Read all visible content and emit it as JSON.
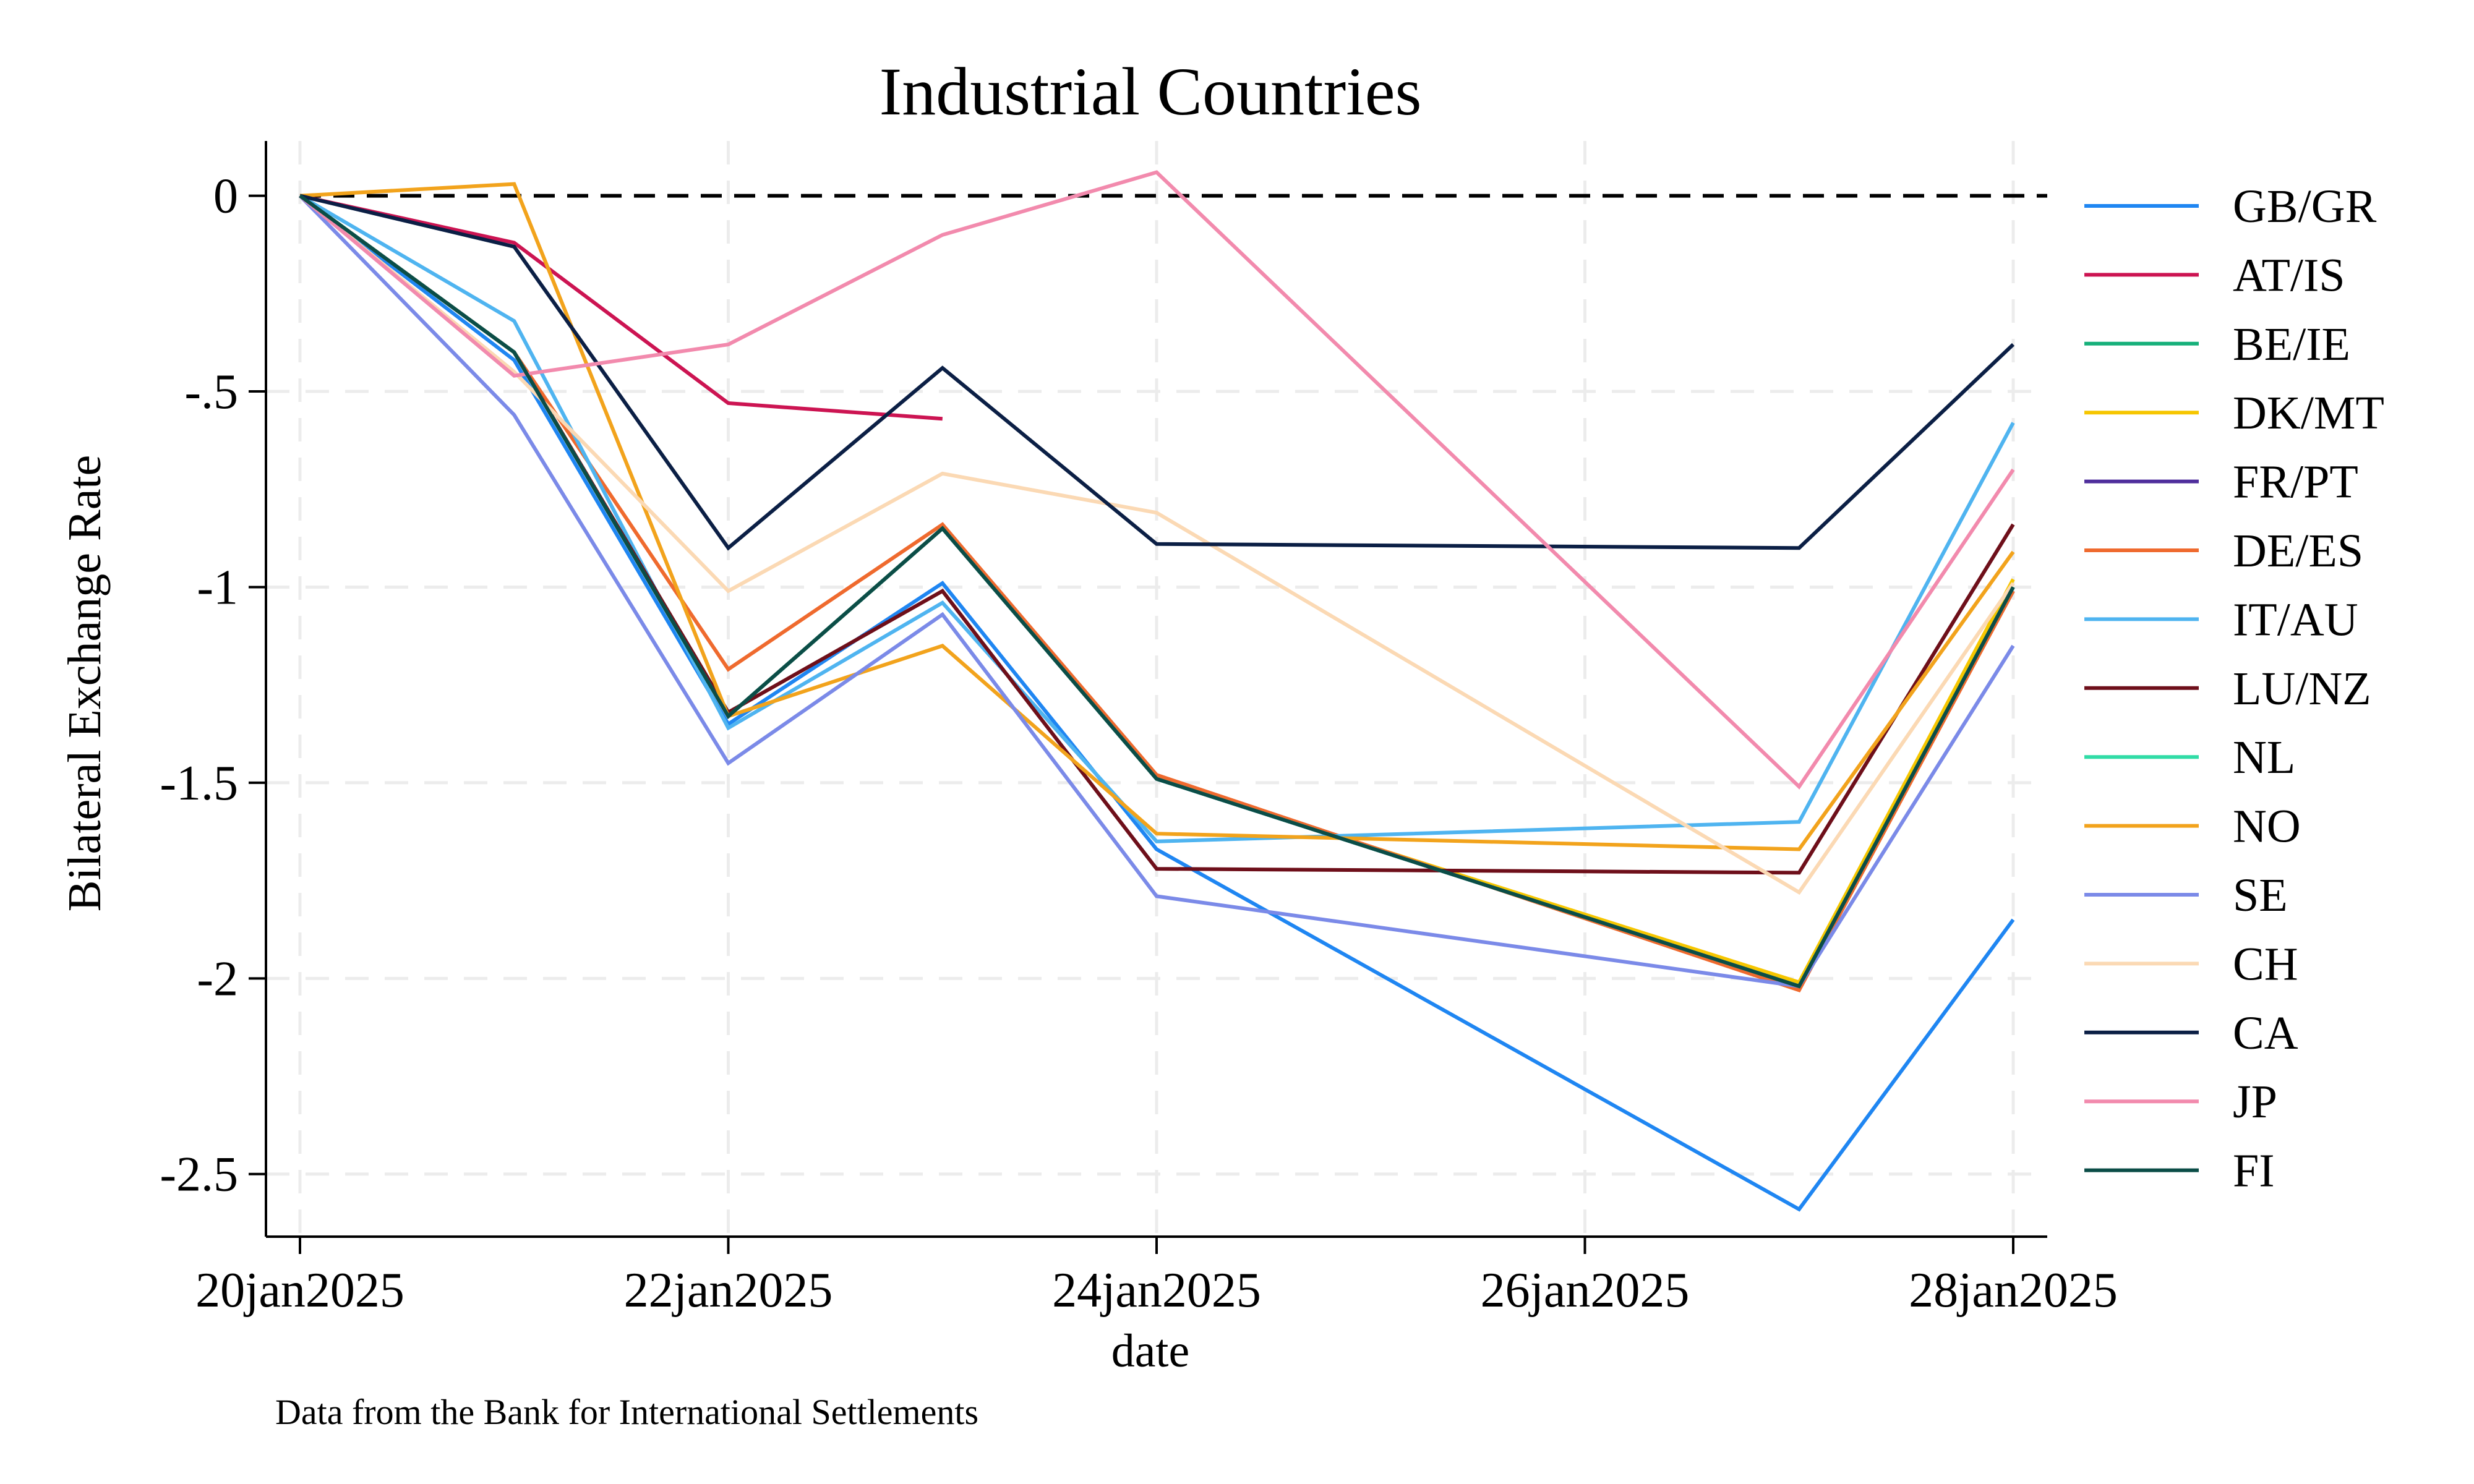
{
  "chart_data": {
    "type": "line",
    "title": "Industrial Countries",
    "xlabel": "date",
    "ylabel": "Bilateral Exchange Rate",
    "note": "Data from the Bank for International Settlements",
    "x": [
      "20jan2025",
      "21jan2025",
      "22jan2025",
      "23jan2025",
      "24jan2025",
      "27jan2025",
      "28jan2025"
    ],
    "x_ticks": [
      "20jan2025",
      "22jan2025",
      "24jan2025",
      "26jan2025",
      "28jan2025"
    ],
    "y_ticks": [
      0,
      -0.5,
      -1,
      -1.5,
      -2,
      -2.5
    ],
    "y_tick_labels": [
      "0",
      "-.5",
      "-1",
      "-1.5",
      "-2",
      "-2.5"
    ],
    "ylim": [
      -2.66,
      0.14
    ],
    "reference_line": 0,
    "grid": true,
    "legend_position": "right",
    "series": [
      {
        "name": "GB/GR",
        "color": "#1f86f2",
        "values": [
          0,
          -0.42,
          -1.35,
          -0.99,
          -1.67,
          -2.59,
          -1.85
        ]
      },
      {
        "name": "AT/IS",
        "color": "#cc1452",
        "values": [
          0,
          -0.12,
          -0.53,
          -0.57,
          null,
          null,
          null
        ]
      },
      {
        "name": "BE/IE",
        "color": "#16b07a",
        "values": [
          0,
          -0.4,
          -1.33,
          -0.85,
          -1.49,
          -2.02,
          -1.0
        ]
      },
      {
        "name": "DK/MT",
        "color": "#f6c600",
        "values": [
          0,
          -0.4,
          -1.33,
          -0.85,
          -1.49,
          -2.01,
          -0.98
        ]
      },
      {
        "name": "FR/PT",
        "color": "#4f2e9c",
        "values": [
          0,
          -0.4,
          -1.33,
          -0.85,
          -1.49,
          -2.02,
          -1.01
        ]
      },
      {
        "name": "DE/ES",
        "color": "#ef6a2e",
        "values": [
          0,
          -0.4,
          -1.21,
          -0.84,
          -1.48,
          -2.03,
          -1.01
        ]
      },
      {
        "name": "IT/AU",
        "color": "#4fb4f0",
        "values": [
          0,
          -0.32,
          -1.36,
          -1.04,
          -1.65,
          -1.6,
          -0.58
        ]
      },
      {
        "name": "LU/NZ",
        "color": "#6e0f1a",
        "values": [
          0,
          -0.4,
          -1.32,
          -1.01,
          -1.72,
          -1.73,
          -0.84
        ]
      },
      {
        "name": "NL",
        "color": "#30dca6",
        "values": [
          0,
          -0.4,
          -1.33,
          -0.85,
          -1.49,
          -2.02,
          -1.0
        ]
      },
      {
        "name": "NO",
        "color": "#f2a31c",
        "values": [
          0,
          0.03,
          -1.33,
          -1.15,
          -1.63,
          -1.67,
          -0.91
        ]
      },
      {
        "name": "SE",
        "color": "#7b8ae8",
        "values": [
          0,
          -0.56,
          -1.45,
          -1.07,
          -1.79,
          -2.02,
          -1.15
        ]
      },
      {
        "name": "CH",
        "color": "#fbd9b4",
        "values": [
          0,
          -0.45,
          -1.01,
          -0.71,
          -0.81,
          -1.78,
          -0.99
        ]
      },
      {
        "name": "CA",
        "color": "#0b1f45",
        "values": [
          0,
          -0.13,
          -0.9,
          -0.44,
          -0.89,
          -0.9,
          -0.38
        ]
      },
      {
        "name": "JP",
        "color": "#f28aad",
        "values": [
          0,
          -0.46,
          -0.38,
          -0.1,
          0.06,
          -1.51,
          -0.7
        ]
      },
      {
        "name": "FI",
        "color": "#0b4d47",
        "values": [
          0,
          -0.4,
          -1.33,
          -0.85,
          -1.49,
          -2.02,
          -1.0
        ]
      }
    ]
  }
}
